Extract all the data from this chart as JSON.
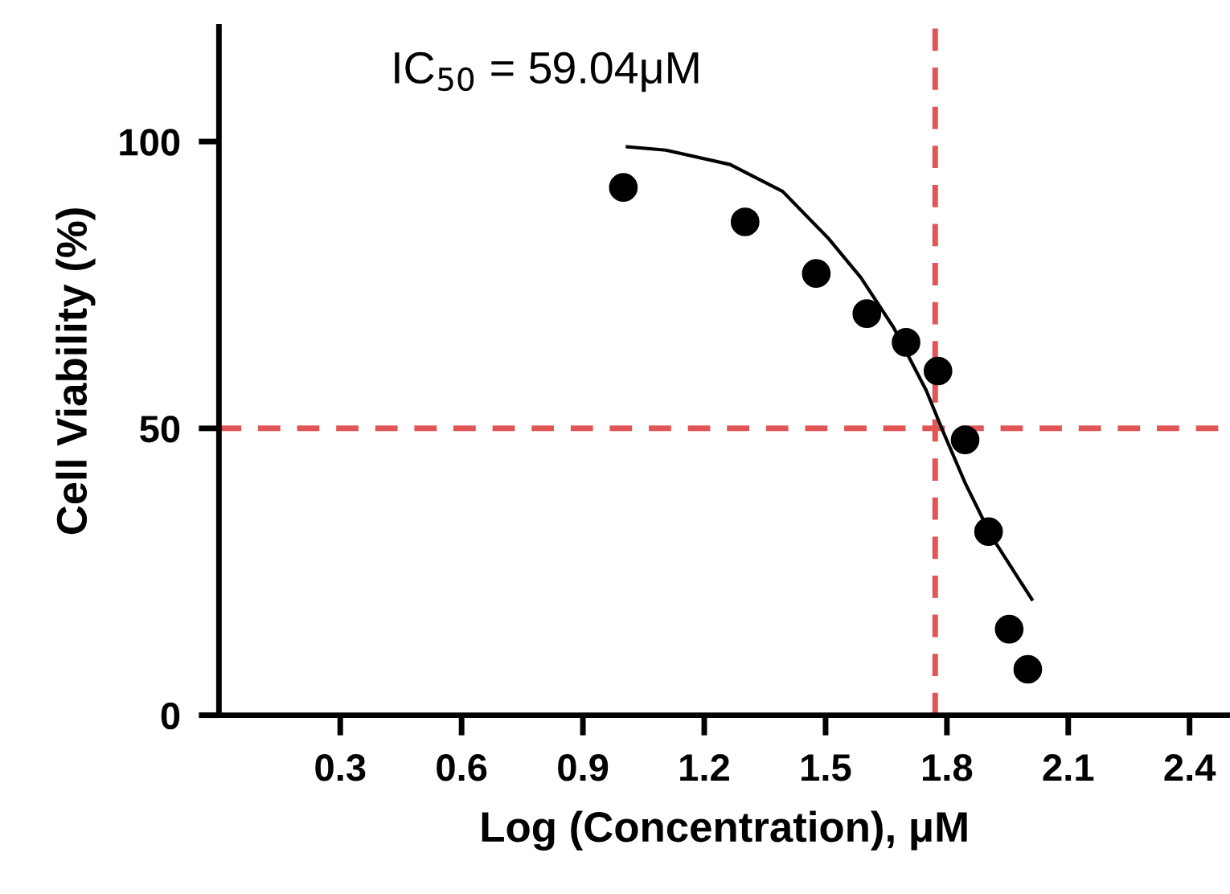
{
  "chart_data": {
    "type": "scatter",
    "xlabel": "Log (Concentration), μM",
    "ylabel": "Cell Viability (%)",
    "annotations": [
      "IC$_{50}$ = 59.04μM"
    ],
    "xlim": [
      0,
      2.5
    ],
    "xticks": [
      0.3,
      0.6,
      0.9,
      1.2,
      1.5,
      1.8,
      2.1,
      2.4
    ],
    "ylim": [
      0,
      120
    ],
    "yticks": [
      0,
      50,
      100
    ],
    "grid": false,
    "legend": false,
    "marker": "circle",
    "series": [
      {
        "color": "#000000",
        "x": [
          1.0,
          1.301,
          1.477,
          1.602,
          1.699,
          1.778,
          1.845,
          1.903,
          1.954,
          2.0
        ],
        "values": [
          92,
          86,
          77,
          70,
          65,
          60,
          48,
          32,
          15,
          8
        ]
      },
      {
        "type": "line",
        "color": "#000000",
        "marker": "none",
        "line_style": "solid",
        "x": [
          1.01,
          1.105,
          1.264,
          1.394,
          1.506,
          1.587,
          1.668,
          1.749,
          1.789,
          1.845,
          1.91,
          2.01
        ],
        "values": [
          99.1,
          98.5,
          96,
          91.3,
          83.2,
          76.3,
          67.6,
          56.6,
          49.7,
          40.5,
          31.2,
          20.2
        ]
      }
    ],
    "ref_lines": [
      {
        "axis": "x",
        "value": 1.771,
        "label": null,
        "color": "#e05555",
        "line_style": "dashed"
      },
      {
        "axis": "y",
        "value": 50,
        "label": null,
        "color": "#e05555",
        "line_style": "dashed"
      }
    ]
  }
}
